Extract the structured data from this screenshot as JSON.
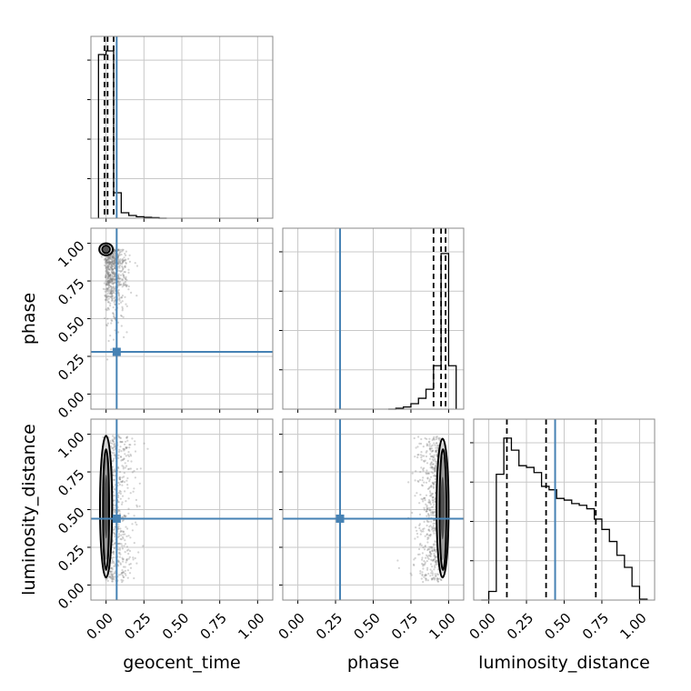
{
  "chart_data": {
    "type": "corner",
    "parameters": [
      "geocent_time",
      "phase",
      "luminosity_distance"
    ],
    "tick_labels": [
      "0.00",
      "0.25",
      "0.50",
      "0.75",
      "1.00"
    ],
    "axis_range": [
      -0.1,
      1.1
    ],
    "grid": true,
    "colors": {
      "truth": "#4682b4",
      "hist": "#000000",
      "scatter": "#808080"
    },
    "truths": {
      "geocent_time": 0.07,
      "phase": 0.28,
      "luminosity_distance": 0.44
    },
    "histograms": [
      {
        "parameter": "geocent_time",
        "ylim": [
          0,
          1.0
        ],
        "edges": [
          -0.05,
          0.0,
          0.05,
          0.1,
          0.15,
          0.2,
          0.25,
          0.3,
          0.35,
          0.4
        ],
        "counts": [
          0.9,
          0.92,
          0.14,
          0.03,
          0.015,
          0.008,
          0.005,
          0.003,
          0.0
        ],
        "quantile_lines": [
          -0.01,
          0.01,
          0.05
        ]
      },
      {
        "parameter": "phase",
        "ylim": [
          0,
          1.0
        ],
        "edges": [
          0.6,
          0.65,
          0.7,
          0.75,
          0.8,
          0.85,
          0.9,
          0.95,
          1.0,
          1.05
        ],
        "counts": [
          0.0,
          0.005,
          0.012,
          0.03,
          0.06,
          0.11,
          0.24,
          0.86,
          0.24
        ],
        "quantile_lines": [
          0.9,
          0.95,
          0.98
        ]
      },
      {
        "parameter": "luminosity_distance",
        "ylim": [
          0,
          1.05
        ],
        "edges": [
          -0.05,
          0.0,
          0.05,
          0.1,
          0.15,
          0.2,
          0.25,
          0.3,
          0.35,
          0.4,
          0.45,
          0.5,
          0.55,
          0.6,
          0.65,
          0.7,
          0.75,
          0.8,
          0.85,
          0.9,
          0.95,
          1.0,
          1.05
        ],
        "counts": [
          0.0,
          0.05,
          0.73,
          0.94,
          0.87,
          0.78,
          0.77,
          0.74,
          0.66,
          0.64,
          0.59,
          0.58,
          0.56,
          0.55,
          0.53,
          0.47,
          0.41,
          0.34,
          0.26,
          0.19,
          0.08,
          0.005
        ],
        "quantile_lines": [
          0.12,
          0.38,
          0.71
        ]
      }
    ],
    "pairs": [
      {
        "x": "geocent_time",
        "y": "phase",
        "density_center": [
          0.0,
          0.96
        ],
        "density_spread": [
          0.04,
          0.35
        ],
        "contours": [
          [
            -0.045,
            0.045,
            0.92,
            1.0
          ],
          [
            -0.025,
            0.025,
            0.935,
            0.985
          ]
        ]
      },
      {
        "x": "geocent_time",
        "y": "luminosity_distance",
        "density_center": [
          0.0,
          0.5
        ],
        "density_spread": [
          0.05,
          0.45
        ],
        "contours": [
          [
            -0.04,
            0.04,
            0.05,
            0.99
          ],
          [
            -0.02,
            0.02,
            0.1,
            0.9
          ]
        ]
      },
      {
        "x": "phase",
        "y": "luminosity_distance",
        "density_center": [
          0.96,
          0.5
        ],
        "density_spread": [
          0.05,
          0.45
        ],
        "contours": [
          [
            0.92,
            1.0,
            0.05,
            0.97
          ],
          [
            0.94,
            0.985,
            0.1,
            0.9
          ]
        ]
      }
    ]
  }
}
